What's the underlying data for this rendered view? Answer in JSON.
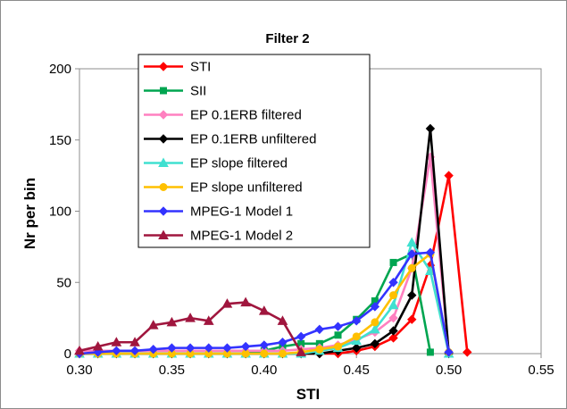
{
  "chart_data": {
    "type": "line",
    "title": "Filter 2",
    "xlabel": "STI",
    "ylabel": "Nr per bin",
    "xlim": [
      0.3,
      0.55
    ],
    "ylim": [
      0,
      200
    ],
    "x_ticks": [
      "0.30",
      "0.35",
      "0.40",
      "0.45",
      "0.50",
      "0.55"
    ],
    "y_ticks": [
      "0",
      "50",
      "100",
      "150",
      "200"
    ],
    "grid": false,
    "legend_position": "top-left",
    "series": [
      {
        "name": "STI",
        "color": "#ff0000",
        "marker": "diamond",
        "points": [
          [
            0.3,
            0
          ],
          [
            0.31,
            0
          ],
          [
            0.32,
            0
          ],
          [
            0.33,
            0
          ],
          [
            0.34,
            0
          ],
          [
            0.35,
            0
          ],
          [
            0.36,
            0
          ],
          [
            0.37,
            0
          ],
          [
            0.38,
            0
          ],
          [
            0.39,
            0
          ],
          [
            0.4,
            0
          ],
          [
            0.41,
            0
          ],
          [
            0.42,
            0
          ],
          [
            0.43,
            0
          ],
          [
            0.44,
            0
          ],
          [
            0.45,
            2
          ],
          [
            0.46,
            5
          ],
          [
            0.47,
            11
          ],
          [
            0.48,
            24
          ],
          [
            0.49,
            62
          ],
          [
            0.5,
            125
          ],
          [
            0.51,
            1
          ]
        ]
      },
      {
        "name": "SII",
        "color": "#00a550",
        "marker": "square",
        "points": [
          [
            0.3,
            0
          ],
          [
            0.31,
            0
          ],
          [
            0.32,
            0
          ],
          [
            0.33,
            0
          ],
          [
            0.34,
            0
          ],
          [
            0.35,
            0
          ],
          [
            0.36,
            0
          ],
          [
            0.37,
            0
          ],
          [
            0.38,
            0
          ],
          [
            0.39,
            0
          ],
          [
            0.4,
            2
          ],
          [
            0.41,
            5
          ],
          [
            0.42,
            7
          ],
          [
            0.43,
            7
          ],
          [
            0.44,
            13
          ],
          [
            0.45,
            24
          ],
          [
            0.46,
            37
          ],
          [
            0.47,
            64
          ],
          [
            0.48,
            70
          ],
          [
            0.49,
            1
          ]
        ]
      },
      {
        "name": "EP 0.1ERB filtered",
        "color": "#ff80c0",
        "marker": "diamond",
        "points": [
          [
            0.3,
            2
          ],
          [
            0.31,
            2
          ],
          [
            0.32,
            2
          ],
          [
            0.33,
            2
          ],
          [
            0.34,
            2
          ],
          [
            0.35,
            2
          ],
          [
            0.36,
            2
          ],
          [
            0.37,
            2
          ],
          [
            0.38,
            2
          ],
          [
            0.39,
            2
          ],
          [
            0.4,
            2
          ],
          [
            0.41,
            2
          ],
          [
            0.42,
            3
          ],
          [
            0.43,
            4
          ],
          [
            0.44,
            6
          ],
          [
            0.45,
            10
          ],
          [
            0.46,
            15
          ],
          [
            0.47,
            25
          ],
          [
            0.48,
            60
          ],
          [
            0.49,
            138
          ],
          [
            0.5,
            1
          ]
        ]
      },
      {
        "name": "EP 0.1ERB unfiltered",
        "color": "#000000",
        "marker": "diamond",
        "points": [
          [
            0.3,
            0
          ],
          [
            0.31,
            0
          ],
          [
            0.32,
            0
          ],
          [
            0.33,
            0
          ],
          [
            0.34,
            0
          ],
          [
            0.35,
            0
          ],
          [
            0.36,
            0
          ],
          [
            0.37,
            0
          ],
          [
            0.38,
            0
          ],
          [
            0.39,
            0
          ],
          [
            0.4,
            0
          ],
          [
            0.41,
            0
          ],
          [
            0.42,
            0
          ],
          [
            0.43,
            0
          ],
          [
            0.44,
            2
          ],
          [
            0.45,
            4
          ],
          [
            0.46,
            7
          ],
          [
            0.47,
            16
          ],
          [
            0.48,
            41
          ],
          [
            0.49,
            158
          ],
          [
            0.5,
            0
          ]
        ]
      },
      {
        "name": "EP slope filtered",
        "color": "#40e0d0",
        "marker": "triangle",
        "points": [
          [
            0.3,
            0
          ],
          [
            0.31,
            0
          ],
          [
            0.32,
            0
          ],
          [
            0.33,
            0
          ],
          [
            0.34,
            0
          ],
          [
            0.35,
            0
          ],
          [
            0.36,
            0
          ],
          [
            0.37,
            0
          ],
          [
            0.38,
            0
          ],
          [
            0.39,
            0
          ],
          [
            0.4,
            0
          ],
          [
            0.41,
            0
          ],
          [
            0.42,
            0
          ],
          [
            0.43,
            2
          ],
          [
            0.44,
            4
          ],
          [
            0.45,
            9
          ],
          [
            0.46,
            17
          ],
          [
            0.47,
            34
          ],
          [
            0.48,
            78
          ],
          [
            0.49,
            58
          ],
          [
            0.5,
            0
          ]
        ]
      },
      {
        "name": "EP slope unfiltered",
        "color": "#ffc000",
        "marker": "circle",
        "points": [
          [
            0.3,
            0
          ],
          [
            0.31,
            0
          ],
          [
            0.32,
            0
          ],
          [
            0.33,
            0
          ],
          [
            0.34,
            0
          ],
          [
            0.35,
            0
          ],
          [
            0.36,
            0
          ],
          [
            0.37,
            0
          ],
          [
            0.38,
            0
          ],
          [
            0.39,
            0
          ],
          [
            0.4,
            0
          ],
          [
            0.41,
            0
          ],
          [
            0.42,
            1
          ],
          [
            0.43,
            3
          ],
          [
            0.44,
            5
          ],
          [
            0.45,
            12
          ],
          [
            0.46,
            22
          ],
          [
            0.47,
            41
          ],
          [
            0.48,
            60
          ],
          [
            0.49,
            70
          ],
          [
            0.5,
            1
          ]
        ]
      },
      {
        "name": "MPEG-1 Model 1",
        "color": "#3333ff",
        "marker": "diamond",
        "points": [
          [
            0.3,
            0
          ],
          [
            0.31,
            1
          ],
          [
            0.32,
            2
          ],
          [
            0.33,
            2
          ],
          [
            0.34,
            3
          ],
          [
            0.35,
            4
          ],
          [
            0.36,
            4
          ],
          [
            0.37,
            4
          ],
          [
            0.38,
            4
          ],
          [
            0.39,
            5
          ],
          [
            0.4,
            6
          ],
          [
            0.41,
            8
          ],
          [
            0.42,
            12
          ],
          [
            0.43,
            17
          ],
          [
            0.44,
            19
          ],
          [
            0.45,
            23
          ],
          [
            0.46,
            33
          ],
          [
            0.47,
            50
          ],
          [
            0.48,
            70
          ],
          [
            0.49,
            71
          ],
          [
            0.5,
            1
          ]
        ]
      },
      {
        "name": "MPEG-1 Model 2",
        "color": "#a0163e",
        "marker": "triangle",
        "points": [
          [
            0.3,
            2
          ],
          [
            0.31,
            5
          ],
          [
            0.32,
            8
          ],
          [
            0.33,
            8
          ],
          [
            0.34,
            20
          ],
          [
            0.35,
            22
          ],
          [
            0.36,
            25
          ],
          [
            0.37,
            23
          ],
          [
            0.38,
            35
          ],
          [
            0.39,
            36
          ],
          [
            0.4,
            30
          ],
          [
            0.41,
            23
          ],
          [
            0.42,
            1
          ]
        ]
      }
    ]
  }
}
